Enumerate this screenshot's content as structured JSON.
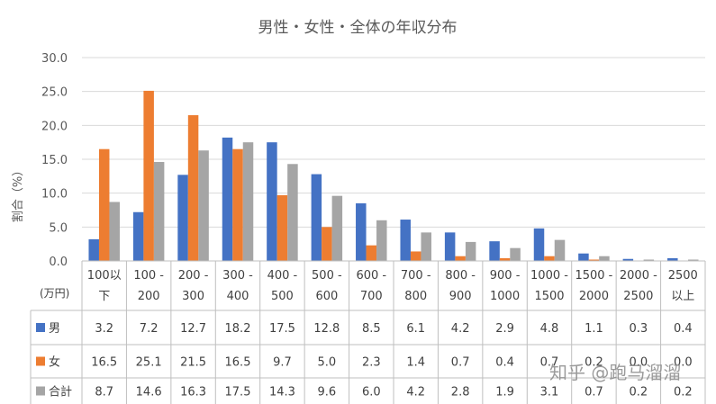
{
  "chart_data": {
    "type": "bar",
    "title": "男性・女性・全体の年収分布",
    "ylabel": "割合（%）",
    "unit_label": "(万円)",
    "ylim": [
      0,
      30
    ],
    "yticks": [
      "0.0",
      "5.0",
      "10.0",
      "15.0",
      "20.0",
      "25.0",
      "30.0"
    ],
    "grid": true,
    "legend": "data-table",
    "categories": [
      [
        "100以",
        "下"
      ],
      [
        "100 -",
        "200"
      ],
      [
        "200 -",
        "300"
      ],
      [
        "300 -",
        "400"
      ],
      [
        "400 -",
        "500"
      ],
      [
        "500 -",
        "600"
      ],
      [
        "600 -",
        "700"
      ],
      [
        "700 -",
        "800"
      ],
      [
        "800 -",
        "900"
      ],
      [
        "900 -",
        "1000"
      ],
      [
        "1000 -",
        "1500"
      ],
      [
        "1500 -",
        "2000"
      ],
      [
        "2000 -",
        "2500"
      ],
      [
        "2500",
        "以上"
      ]
    ],
    "series": [
      {
        "name": "男",
        "color": "#4472C4",
        "values": [
          3.2,
          7.2,
          12.7,
          18.2,
          17.5,
          12.8,
          8.5,
          6.1,
          4.2,
          2.9,
          4.8,
          1.1,
          0.3,
          0.4
        ],
        "labels": [
          "3.2",
          "7.2",
          "12.7",
          "18.2",
          "17.5",
          "12.8",
          "8.5",
          "6.1",
          "4.2",
          "2.9",
          "4.8",
          "1.1",
          "0.3",
          "0.4"
        ]
      },
      {
        "name": "女",
        "color": "#ED7D31",
        "values": [
          16.5,
          25.1,
          21.5,
          16.5,
          9.7,
          5.0,
          2.3,
          1.4,
          0.7,
          0.4,
          0.7,
          0.2,
          0.0,
          0.0
        ],
        "labels": [
          "16.5",
          "25.1",
          "21.5",
          "16.5",
          "9.7",
          "5.0",
          "2.3",
          "1.4",
          "0.7",
          "0.4",
          "0.7",
          "0.2",
          "0.0",
          "0.0"
        ]
      },
      {
        "name": "合計",
        "color": "#A5A5A5",
        "values": [
          8.7,
          14.6,
          16.3,
          17.5,
          14.3,
          9.6,
          6.0,
          4.2,
          2.8,
          1.9,
          3.1,
          0.7,
          0.2,
          0.2
        ],
        "labels": [
          "8.7",
          "14.6",
          "16.3",
          "17.5",
          "14.3",
          "9.6",
          "6.0",
          "4.2",
          "2.8",
          "1.9",
          "3.1",
          "0.7",
          "0.2",
          "0.2"
        ]
      }
    ]
  },
  "watermark": "知乎 @跑马溜溜"
}
